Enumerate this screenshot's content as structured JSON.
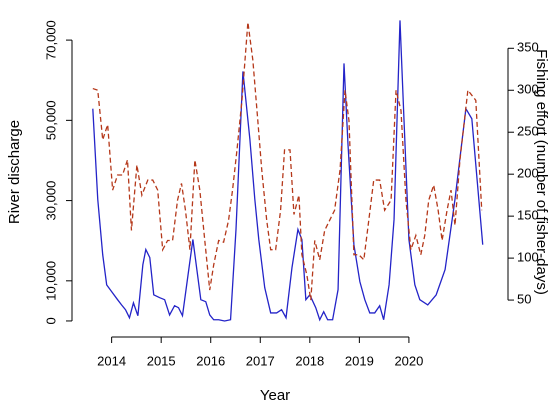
{
  "chart_data": {
    "type": "line",
    "xlabel": "Year",
    "ylabel": "River discharge",
    "y2label": "Fishing effort (number of fisher-days)",
    "xlim": [
      2013.2,
      2022.0
    ],
    "xticks": [
      2014,
      2015,
      2016,
      2017,
      2018,
      2019,
      2020
    ],
    "ylim": [
      -4000,
      78000
    ],
    "yticks": [
      0,
      {
        "value": 10000,
        "label": "10,000"
      },
      {
        "value": 30000,
        "label": "30,000"
      },
      {
        "value": 50000,
        "label": "50,000"
      },
      {
        "value": 70000,
        "label": "70,000"
      }
    ],
    "y2lim": [
      6,
      398
    ],
    "y2ticks": [
      50,
      100,
      150,
      200,
      250,
      300,
      350
    ],
    "series": [
      {
        "color": "#2424c8",
        "dash": false,
        "x": [
          2013.62,
          2013.72,
          2013.82,
          2013.9,
          2014.0,
          2014.12,
          2014.2,
          2014.28,
          2014.36,
          2014.44,
          2014.53,
          2014.63,
          2014.69,
          2014.77,
          2014.85,
          2014.97,
          2015.07,
          2015.17,
          2015.27,
          2015.35,
          2015.43,
          2015.54,
          2015.64,
          2015.72,
          2015.8,
          2015.9,
          2015.98,
          2016.06,
          2016.16,
          2016.28,
          2016.4,
          2016.51,
          2016.65,
          2016.79,
          2016.89,
          2016.97,
          2017.09,
          2017.21,
          2017.33,
          2017.43,
          2017.52,
          2017.64,
          2017.76,
          2017.84,
          2017.92,
          2018.0,
          2018.12,
          2018.2,
          2018.28,
          2018.36,
          2018.46,
          2018.57,
          2018.69,
          2018.77,
          2018.89,
          2019.01,
          2019.11,
          2019.21,
          2019.31,
          2019.41,
          2019.49,
          2019.6,
          2019.7,
          2019.82,
          2019.9,
          2020.0,
          2020.12,
          2020.22,
          2020.38,
          2020.55,
          2020.73,
          2020.93,
          2021.15,
          2021.27,
          2021.49
        ],
        "values": [
          52900,
          30300,
          16500,
          9000,
          7300,
          5300,
          4000,
          2800,
          800,
          4500,
          1300,
          14000,
          17800,
          15800,
          6500,
          5800,
          5300,
          1500,
          3800,
          3300,
          1300,
          11300,
          20300,
          12800,
          5300,
          4800,
          1500,
          300,
          300,
          0,
          300,
          22800,
          62200,
          45300,
          30300,
          20300,
          8300,
          2000,
          2000,
          2800,
          800,
          13300,
          22800,
          20300,
          5300,
          6500,
          3300,
          300,
          2300,
          300,
          300,
          7800,
          64200,
          44100,
          19000,
          9800,
          5300,
          2000,
          2000,
          3800,
          300,
          9000,
          25300,
          74900,
          50400,
          20300,
          9000,
          5300,
          4000,
          6500,
          12800,
          30300,
          52900,
          50400,
          19000
        ]
      },
      {
        "color": "#b5381a",
        "dash": true,
        "axis": "y2",
        "x": [
          2013.62,
          2013.72,
          2013.82,
          2013.92,
          2014.02,
          2014.12,
          2014.22,
          2014.32,
          2014.4,
          2014.51,
          2014.61,
          2014.73,
          2014.83,
          2014.93,
          2015.03,
          2015.13,
          2015.23,
          2015.33,
          2015.41,
          2015.49,
          2015.58,
          2015.68,
          2015.78,
          2015.88,
          2015.98,
          2016.06,
          2016.16,
          2016.26,
          2016.36,
          2016.44,
          2016.53,
          2016.63,
          2016.75,
          2016.85,
          2016.95,
          2017.03,
          2017.13,
          2017.21,
          2017.31,
          2017.41,
          2017.49,
          2017.6,
          2017.68,
          2017.78,
          2017.84,
          2017.94,
          2018.02,
          2018.1,
          2018.2,
          2018.3,
          2018.4,
          2018.5,
          2018.61,
          2018.71,
          2018.79,
          2018.89,
          2018.99,
          2019.09,
          2019.19,
          2019.29,
          2019.41,
          2019.51,
          2019.64,
          2019.74,
          2019.84,
          2019.94,
          2020.04,
          2020.14,
          2020.24,
          2020.32,
          2020.4,
          2020.5,
          2020.59,
          2020.67,
          2020.77,
          2020.85,
          2020.93,
          2021.03,
          2021.19,
          2021.35,
          2021.47
        ],
        "values": [
          302,
          300,
          241,
          259,
          181,
          199,
          199,
          217,
          133,
          211,
          175,
          193,
          193,
          181,
          110,
          121,
          121,
          169,
          189,
          157,
          110,
          217,
          181,
          121,
          62,
          92,
          121,
          119,
          145,
          181,
          229,
          288,
          381,
          336,
          264,
          205,
          145,
          110,
          110,
          157,
          229,
          229,
          152,
          175,
          104,
          80,
          50,
          121,
          98,
          133,
          145,
          157,
          205,
          300,
          264,
          104,
          104,
          98,
          145,
          193,
          193,
          157,
          169,
          300,
          276,
          169,
          110,
          127,
          104,
          127,
          169,
          187,
          157,
          121,
          157,
          181,
          139,
          217,
          300,
          288,
          157
        ]
      }
    ]
  }
}
